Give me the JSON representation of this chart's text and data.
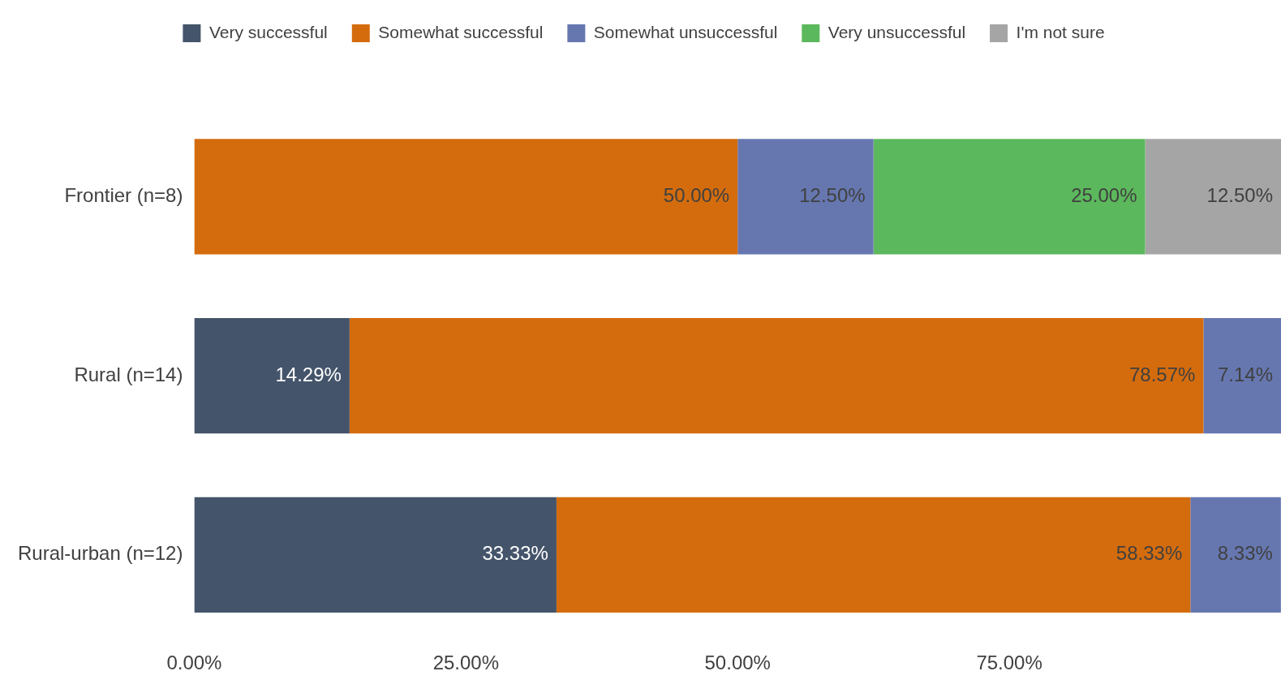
{
  "chart_data": {
    "type": "bar",
    "orientation": "horizontal",
    "stacked": true,
    "legend": "top",
    "categories": [
      "Frontier (n=8)",
      "Rural (n=14)",
      "Rural-urban (n=12)"
    ],
    "series": [
      {
        "name": "Very successful",
        "color": "#44546a",
        "values": [
          null,
          14.29,
          33.33
        ],
        "value_labels": [
          null,
          "14.29%",
          "33.33%"
        ]
      },
      {
        "name": "Somewhat successful",
        "color": "#d46c0e",
        "values": [
          50,
          78.57,
          58.33
        ],
        "value_labels": [
          "50.00%",
          "78.57%",
          "58.33%"
        ]
      },
      {
        "name": "Somewhat unsuccessful",
        "color": "#6677b0",
        "values": [
          12.5,
          7.14,
          8.33
        ],
        "value_labels": [
          "12.50%",
          "7.14%",
          "8.33%"
        ]
      },
      {
        "name": "Very unsuccessful",
        "color": "#5cb85c",
        "values": [
          25,
          null,
          null
        ],
        "value_labels": [
          "25.00%",
          null,
          null
        ]
      },
      {
        "name": "I'm not sure",
        "color": "#a5a5a5",
        "values": [
          12.5,
          null,
          null
        ],
        "value_labels": [
          "12.50%",
          null,
          null
        ]
      }
    ],
    "xlim": [
      0,
      100
    ],
    "xticks": [
      {
        "value": 0,
        "label": "0.00%"
      },
      {
        "value": 25,
        "label": "25.00%"
      },
      {
        "value": 50,
        "label": "50.00%"
      },
      {
        "value": 75,
        "label": "75.00%"
      }
    ],
    "grid": false
  }
}
